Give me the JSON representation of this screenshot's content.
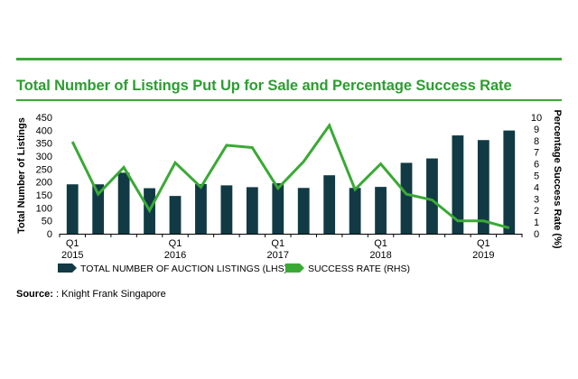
{
  "colors": {
    "bar": "#113a44",
    "line": "#3aa935",
    "accent_rule": "#3aa935",
    "title": "#2e9c32",
    "text": "#000000"
  },
  "source": {
    "label": "Source:",
    "text": ": Knight Frank Singapore"
  },
  "chart_data": {
    "type": "bar",
    "title": "Total Number of Listings Put Up for Sale and Percentage Success Rate",
    "ylabel_left": "Total Number of Listings",
    "ylabel_right": "Percentage Success Rate (%)",
    "ylim_left": [
      0,
      450
    ],
    "ylim_right": [
      0,
      10
    ],
    "yticks_left": [
      "450",
      "400",
      "350",
      "300",
      "250",
      "200",
      "150",
      "100",
      "50",
      "0"
    ],
    "yticks_right": [
      "10",
      "9",
      "8",
      "7",
      "6",
      "5",
      "4",
      "3",
      "2",
      "1",
      "0"
    ],
    "quarters": [
      "2015 Q1",
      "2015 Q2",
      "2015 Q3",
      "2015 Q4",
      "2016 Q1",
      "2016 Q2",
      "2016 Q3",
      "2016 Q4",
      "2017 Q1",
      "2017 Q2",
      "2017 Q3",
      "2017 Q4",
      "2018 Q1",
      "2018 Q2",
      "2018 Q3",
      "2018 Q4",
      "2019 Q1",
      "2019 Q2"
    ],
    "x_tick_labels": [
      {
        "index": 0,
        "q": "Q1",
        "year": "2015"
      },
      {
        "index": 4,
        "q": "Q1",
        "year": "2016"
      },
      {
        "index": 8,
        "q": "Q1",
        "year": "2017"
      },
      {
        "index": 12,
        "q": "Q1",
        "year": "2018"
      },
      {
        "index": 16,
        "q": "Q1",
        "year": "2019"
      }
    ],
    "series": [
      {
        "name": "TOTAL NUMBER OF AUCTION LISTINGS (LHS)",
        "kind": "bar",
        "axis": "left",
        "values": [
          191,
          191,
          236,
          176,
          146,
          192,
          187,
          180,
          195,
          177,
          226,
          177,
          181,
          274,
          291,
          380,
          362,
          399
        ]
      },
      {
        "name": "SUCCESS RATE (RHS)",
        "kind": "line",
        "axis": "right",
        "values": [
          7.9,
          3.4,
          5.7,
          2.0,
          6.1,
          4.0,
          7.6,
          7.4,
          3.9,
          6.2,
          9.3,
          3.8,
          6.0,
          3.4,
          2.9,
          1.1,
          1.1,
          0.5
        ]
      }
    ],
    "legend": "bottom"
  }
}
